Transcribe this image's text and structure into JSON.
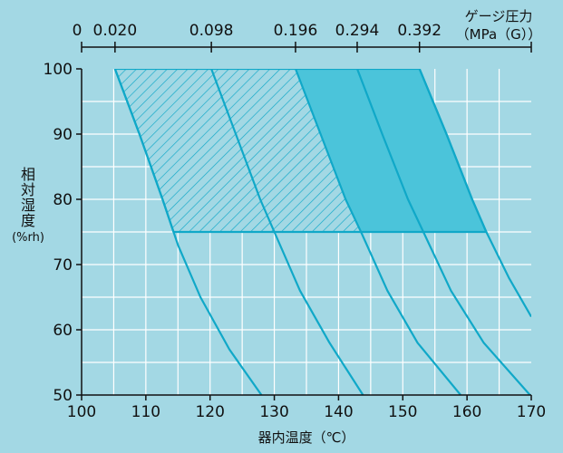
{
  "chart_data": {
    "type": "line",
    "xlabel": "器内温度（℃）",
    "ylabel": [
      "相",
      "対",
      "湿",
      "度",
      "(%rh)"
    ],
    "x_ticks": [
      100,
      110,
      120,
      130,
      140,
      150,
      160,
      170
    ],
    "y_ticks": [
      50,
      60,
      70,
      80,
      90,
      100
    ],
    "xlim": [
      100,
      170
    ],
    "ylim": [
      50,
      100
    ],
    "top_axis": {
      "label_line1": "ゲージ圧力",
      "label_line2": "（MPa（G））",
      "ticks": [
        {
          "at": 100,
          "label": "0"
        },
        {
          "at": 105.2,
          "label": "0.020"
        },
        {
          "at": 120.2,
          "label": "0.098"
        },
        {
          "at": 133.3,
          "label": "0.196"
        },
        {
          "at": 142.9,
          "label": "0.294"
        },
        {
          "at": 152.6,
          "label": "0.392"
        }
      ]
    },
    "series": [
      {
        "values": [
          {
            "x": 105.2,
            "y": 100
          },
          {
            "x": 109.0,
            "y": 90
          },
          {
            "x": 112.6,
            "y": 80
          },
          {
            "x": 115.0,
            "y": 73
          },
          {
            "x": 118.5,
            "y": 65
          },
          {
            "x": 123.0,
            "y": 57
          },
          {
            "x": 128.0,
            "y": 50
          }
        ]
      },
      {
        "values": [
          {
            "x": 120.2,
            "y": 100
          },
          {
            "x": 124.0,
            "y": 90
          },
          {
            "x": 127.8,
            "y": 80
          },
          {
            "x": 130.0,
            "y": 75
          },
          {
            "x": 134.0,
            "y": 66
          },
          {
            "x": 138.6,
            "y": 58
          },
          {
            "x": 143.8,
            "y": 50
          }
        ]
      },
      {
        "values": [
          {
            "x": 133.3,
            "y": 100
          },
          {
            "x": 137.2,
            "y": 90
          },
          {
            "x": 141.1,
            "y": 80
          },
          {
            "x": 143.5,
            "y": 75
          },
          {
            "x": 147.6,
            "y": 66
          },
          {
            "x": 152.3,
            "y": 58
          },
          {
            "x": 159.0,
            "y": 50
          }
        ]
      },
      {
        "values": [
          {
            "x": 142.9,
            "y": 100
          },
          {
            "x": 146.8,
            "y": 90
          },
          {
            "x": 150.8,
            "y": 80
          },
          {
            "x": 153.2,
            "y": 75
          },
          {
            "x": 157.5,
            "y": 66
          },
          {
            "x": 162.6,
            "y": 58
          },
          {
            "x": 169.8,
            "y": 50
          }
        ]
      },
      {
        "values": [
          {
            "x": 152.6,
            "y": 100
          },
          {
            "x": 156.8,
            "y": 90
          },
          {
            "x": 160.8,
            "y": 80
          },
          {
            "x": 163.0,
            "y": 75
          },
          {
            "x": 166.5,
            "y": 68
          },
          {
            "x": 170.0,
            "y": 62
          }
        ]
      }
    ],
    "regions": [
      {
        "fill": "hatched",
        "x_range_at_top": [
          105.2,
          133.3
        ],
        "x_range_at_bottom": [
          113.0,
          141.5
        ],
        "y_range": [
          75,
          100
        ]
      },
      {
        "fill": "solid",
        "x_range_at_top": [
          133.3,
          152.6
        ],
        "x_range_at_bottom": [
          141.5,
          163.0
        ],
        "y_range": [
          75,
          100
        ]
      }
    ],
    "grid": true,
    "colors": {
      "background": "#a3d8e4",
      "curve": "#10a8c8",
      "solid_region": "#4bc4da",
      "hatch": "#10a8c8",
      "axis": "#111111",
      "grid": "#ffffff"
    }
  }
}
